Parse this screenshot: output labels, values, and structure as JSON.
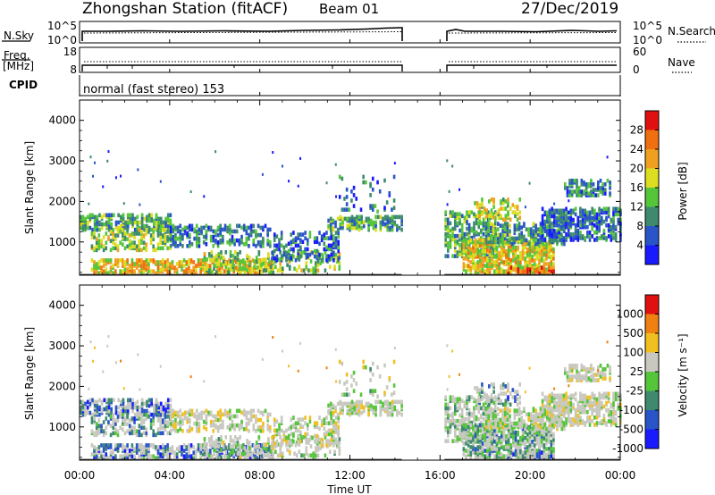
{
  "header": {
    "station": "Zhongshan Station (fitACF)",
    "beam": "Beam 01",
    "date": "27/Dec/2019"
  },
  "left_labels": {
    "nsky": "N.Sky",
    "freq_line1": "Freq.",
    "freq_line2": "[MHz]",
    "cpid": "CPID"
  },
  "right_labels": {
    "nsearch": "N.Search",
    "nave": "Nave"
  },
  "cpid_text": "normal (fast stereo) 153",
  "colors": {
    "power_scale": [
      "#1a1aff",
      "#2a55c8",
      "#3d8a6e",
      "#55c63a",
      "#dddd22",
      "#f0a020",
      "#f07010",
      "#e01010"
    ],
    "velocity_scale": [
      "#1a1aff",
      "#2a55c8",
      "#3d8a6e",
      "#55c63a",
      "#c8c8c0",
      "#f0c020",
      "#f08010",
      "#e01010"
    ]
  },
  "chart_data": [
    {
      "type": "line",
      "name": "noise-panel",
      "ylabel": "N.Sky",
      "yticks": [
        "10^5",
        "10^0"
      ],
      "right_yticks": [
        "10^5",
        "10^0"
      ],
      "right_label": "N.Search",
      "data_gap_hours": [
        14.3,
        16.2
      ],
      "xlim": [
        0,
        24
      ]
    },
    {
      "type": "line",
      "name": "freq-panel",
      "ylabel": "Freq. [MHz]",
      "yticks": [
        "18",
        "8"
      ],
      "right_yticks": [
        "60",
        "0"
      ],
      "right_label": "Nave",
      "data_gap_hours": [
        14.3,
        16.2
      ],
      "xlim": [
        0,
        24
      ]
    },
    {
      "type": "heatmap",
      "name": "power-panel",
      "ylabel": "Slant Range [km]",
      "yticks": [
        "4000",
        "3000",
        "2000",
        "1000"
      ],
      "ylim": [
        180,
        4500
      ],
      "colorbar_label": "Power [dB]",
      "colorbar_ticks": [
        "28",
        "24",
        "20",
        "16",
        "12",
        "8",
        "4"
      ],
      "xlim": [
        0,
        24
      ]
    },
    {
      "type": "heatmap",
      "name": "velocity-panel",
      "ylabel": "Slant Range [km]",
      "yticks": [
        "4000",
        "3000",
        "2000",
        "1000"
      ],
      "ylim": [
        180,
        4500
      ],
      "colorbar_label": "Velocity [m s⁻¹]",
      "colorbar_ticks": [
        "1000",
        "500",
        "100",
        "25",
        "-25",
        "-100",
        "-500",
        "-1000"
      ],
      "xlabel": "Time UT",
      "xticks": [
        "00:00",
        "04:00",
        "08:00",
        "12:00",
        "16:00",
        "20:00",
        "00:00"
      ],
      "xlim": [
        0,
        24
      ]
    }
  ]
}
